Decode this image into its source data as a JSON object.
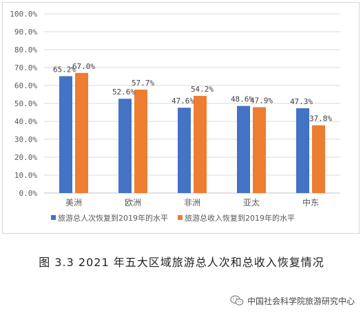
{
  "caption": "图 3.3   2021 年五大区域旅游总人次和总收入恢复情况",
  "watermark": "中国社会科学院旅游研究中心",
  "watermark_icon": "wechat-icon",
  "chart_data": {
    "type": "bar",
    "categories": [
      "美洲",
      "欧洲",
      "非洲",
      "亚太",
      "中东"
    ],
    "series": [
      {
        "name": "旅游总人次恢复到2019年的水平",
        "values": [
          65.2,
          52.6,
          47.6,
          48.6,
          47.3
        ],
        "labels": [
          "65.2%",
          "52.6%",
          "47.6%",
          "48.6%",
          "47.3%"
        ],
        "color": "#4472C4"
      },
      {
        "name": "旅游总收入恢复到2019年的水平",
        "values": [
          67.0,
          57.7,
          54.2,
          47.9,
          37.8
        ],
        "labels": [
          "67.0%",
          "57.7%",
          "54.2%",
          "47.9%",
          "37.8%"
        ],
        "color": "#ED7D31"
      }
    ],
    "yticks": [
      "0.0%",
      "10.0%",
      "20.0%",
      "30.0%",
      "40.0%",
      "50.0%",
      "60.0%",
      "70.0%",
      "80.0%",
      "90.0%",
      "100.0%"
    ],
    "ylim": [
      0,
      100
    ],
    "grid": true,
    "legend_position": "bottom"
  }
}
